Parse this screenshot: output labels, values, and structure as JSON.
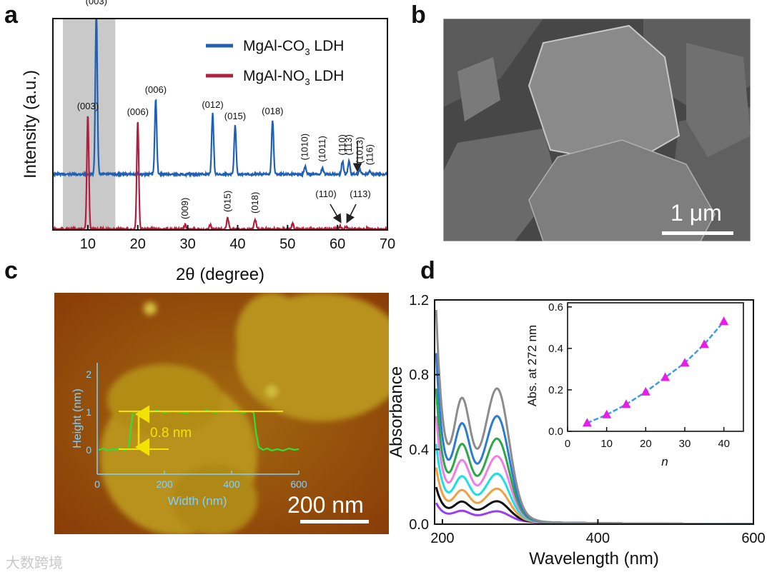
{
  "panels": {
    "a": "a",
    "b": "b",
    "c": "c",
    "d": "d"
  },
  "panel_b": {
    "scalebar": "1 μm"
  },
  "panel_c": {
    "scalebar": "200 nm",
    "inset_ylabel": "Height (nm)",
    "inset_xlabel": "Width (nm)",
    "step_label": "0.8 nm",
    "inset_xticks": [
      "0",
      "200",
      "400",
      "600"
    ],
    "inset_yticks": [
      "0",
      "1",
      "2"
    ]
  },
  "chart_data": [
    {
      "type": "line",
      "panel": "a",
      "xlabel": "2θ (degree)",
      "ylabel": "Intensity (a.u.)",
      "xlim": [
        3,
        70
      ],
      "xticks": [
        "10",
        "20",
        "30",
        "40",
        "50",
        "60",
        "70"
      ],
      "shaded_region": [
        5,
        15.5
      ],
      "series": [
        {
          "name": "MgAl-CO",
          "name_sub": "3",
          "name_suffix": " LDH",
          "color": "#1f5fb4",
          "peaks": [
            {
              "x": 11.7,
              "h": 1.0,
              "label": "(003)"
            },
            {
              "x": 23.6,
              "h": 0.46,
              "label": "(006)"
            },
            {
              "x": 35.0,
              "h": 0.37,
              "label": "(012)"
            },
            {
              "x": 39.5,
              "h": 0.3,
              "label": "(015)"
            },
            {
              "x": 47.0,
              "h": 0.33,
              "label": "(018)"
            },
            {
              "x": 53.5,
              "h": 0.05,
              "label": "(1010)"
            },
            {
              "x": 57.0,
              "h": 0.04,
              "label": "(1011)"
            },
            {
              "x": 61.0,
              "h": 0.08,
              "label": "(110)"
            },
            {
              "x": 62.3,
              "h": 0.08,
              "label": "(113)"
            },
            {
              "x": 64.5,
              "h": 0.03,
              "label": "(1013)"
            },
            {
              "x": 66.5,
              "h": 0.02,
              "label": "(116)"
            }
          ]
        },
        {
          "name": "MgAl-NO",
          "name_sub": "3",
          "name_suffix": " LDH",
          "color": "#b0203e",
          "peaks": [
            {
              "x": 10.0,
              "h": 0.8,
              "label": "(003)"
            },
            {
              "x": 20.0,
              "h": 0.76,
              "label": "(006)"
            },
            {
              "x": 29.5,
              "h": 0.03,
              "label": "(009)"
            },
            {
              "x": 34.5,
              "h": 0.03,
              "label": ""
            },
            {
              "x": 38.0,
              "h": 0.08,
              "label": "(015)"
            },
            {
              "x": 43.5,
              "h": 0.07,
              "label": "(018)"
            },
            {
              "x": 51.0,
              "h": 0.04,
              "label": ""
            },
            {
              "x": 60.5,
              "h": 0.02,
              "label": "(110)"
            },
            {
              "x": 61.7,
              "h": 0.02,
              "label": "(113)"
            },
            {
              "x": 66.0,
              "h": 0.01,
              "label": ""
            }
          ]
        }
      ]
    },
    {
      "type": "line",
      "panel": "d",
      "xlabel": "Wavelength (nm)",
      "ylabel": "Absorbance",
      "xlim": [
        190,
        600
      ],
      "ylim": [
        0,
        1.2
      ],
      "xticks": [
        "200",
        "400",
        "600"
      ],
      "yticks": [
        "0.0",
        "0.4",
        "0.8",
        "1.2"
      ],
      "curve_colors": [
        "#9b3df0",
        "#111111",
        "#f0a040",
        "#18e0e6",
        "#f07ce8",
        "#2aa845",
        "#2b7bd4",
        "#8c8c8c"
      ],
      "series": [
        {
          "n": 5,
          "abs": 0.04
        },
        {
          "n": 10,
          "abs": 0.08
        },
        {
          "n": 15,
          "abs": 0.13
        },
        {
          "n": 20,
          "abs": 0.19
        },
        {
          "n": 25,
          "abs": 0.26
        },
        {
          "n": 30,
          "abs": 0.33
        },
        {
          "n": 35,
          "abs": 0.42
        },
        {
          "n": 40,
          "abs": 0.53
        }
      ],
      "inset": {
        "type": "scatter",
        "xlabel": "n",
        "ylabel": "Abs. at 272 nm",
        "xlim": [
          0,
          45
        ],
        "ylim": [
          0,
          0.62
        ],
        "xticks": [
          "0",
          "10",
          "20",
          "30",
          "40"
        ],
        "yticks": [
          "0.0",
          "0.2",
          "0.4",
          "0.6"
        ],
        "x": [
          5,
          10,
          15,
          20,
          25,
          30,
          35,
          40
        ],
        "y": [
          0.04,
          0.08,
          0.13,
          0.19,
          0.26,
          0.33,
          0.42,
          0.53
        ]
      }
    }
  ],
  "watermark": "大数跨境"
}
